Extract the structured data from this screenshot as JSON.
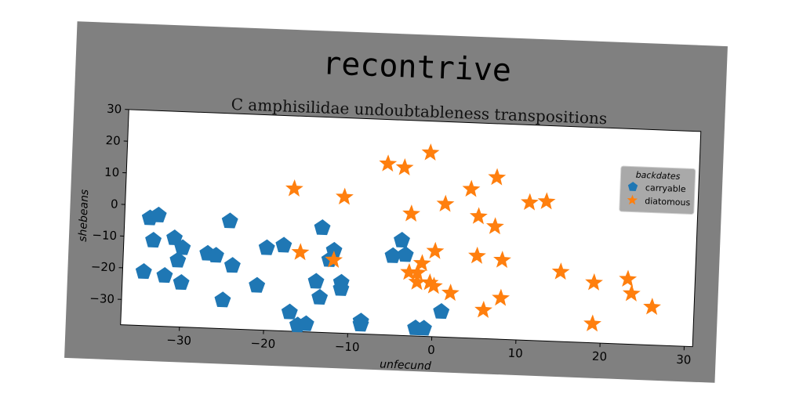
{
  "chart_data": {
    "type": "scatter",
    "title": "recontrive",
    "subtitle": "C amphisilidae undoubtableness transpositions",
    "xlabel": "unfecund",
    "ylabel": "shebeans",
    "xlim": [
      -37,
      31
    ],
    "ylim": [
      -38,
      30
    ],
    "xticks": [
      -30,
      -20,
      -10,
      0,
      10,
      20,
      30
    ],
    "yticks": [
      -30,
      -20,
      -10,
      0,
      10,
      20,
      30
    ],
    "legend": {
      "title": "backdates",
      "position": "top-right"
    },
    "grid": false,
    "series": [
      {
        "name": "carryable",
        "marker": "pentagon",
        "color": "#1f77b4",
        "x": [
          -34,
          -33,
          -33.5,
          -34.5,
          -32,
          -31,
          -30,
          -30.5,
          -30,
          -27,
          -26,
          -25,
          -24,
          -24.5,
          -21,
          -20,
          -18,
          -17,
          -16,
          -15,
          -14,
          -13.5,
          -13.5,
          -12.5,
          -12,
          -11,
          -11,
          -8.5,
          -8.5,
          -5,
          -4,
          -3.5,
          -2,
          -1,
          1
        ],
        "y": [
          -4,
          -3,
          -11,
          -21,
          -22,
          -10,
          -13,
          -17,
          -24,
          -14.5,
          -15,
          -29,
          -18,
          -4,
          -24,
          -12,
          -11,
          -32,
          -36,
          -35.5,
          -22,
          -27,
          -5,
          -15,
          -12,
          -22,
          -24,
          -35,
          -34,
          -13,
          -8,
          -12.5,
          -35.5,
          -35.5,
          -30
        ]
      },
      {
        "name": "diatomous",
        "marker": "star",
        "color": "#ff7f0e",
        "x": [
          -17,
          -16,
          -12,
          -11,
          -6,
          -4,
          -3,
          -3,
          -2,
          -2,
          -1.5,
          -1,
          -0.5,
          0,
          0,
          1,
          2,
          4,
          5,
          5,
          6,
          7,
          7,
          8,
          8,
          11,
          13,
          15,
          19,
          19,
          23,
          23.5,
          26
        ],
        "y": [
          7,
          -13,
          -15,
          5,
          16,
          15,
          0.5,
          -18,
          -18,
          -21,
          -15,
          20,
          -21,
          -22,
          -11,
          4,
          -24,
          9,
          -12,
          0.5,
          -29,
          13,
          -2.5,
          -25,
          -13,
          5.5,
          6,
          -16,
          -19,
          -32,
          -17.5,
          -22,
          -26
        ]
      }
    ]
  }
}
